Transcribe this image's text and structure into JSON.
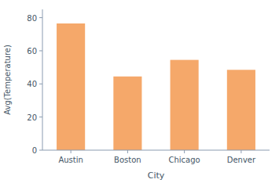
{
  "chart_data": {
    "type": "bar",
    "categories": [
      "Austin",
      "Boston",
      "Chicago",
      "Denver"
    ],
    "values": [
      76.5,
      44.5,
      54.5,
      48.5
    ],
    "color": "#F5A86A",
    "xlabel": "City",
    "ylabel": "Avg(Temperature)",
    "ylim": [
      0,
      85
    ],
    "yticks": [
      0,
      20,
      40,
      60,
      80
    ],
    "grid": false
  }
}
